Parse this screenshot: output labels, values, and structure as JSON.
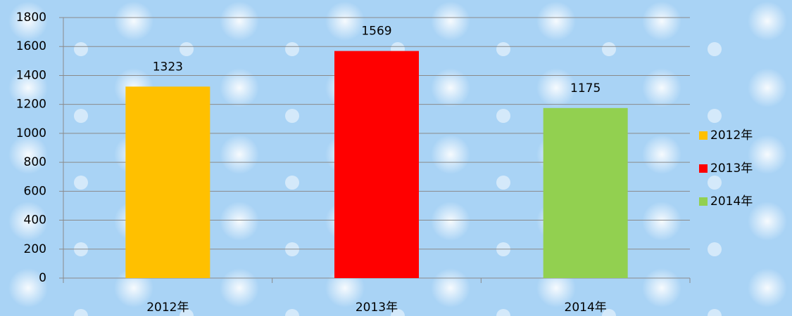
{
  "chart_data": {
    "type": "bar",
    "categories": [
      "2012年",
      "2013年",
      "2014年"
    ],
    "values": [
      1323,
      1569,
      1175
    ],
    "colors": [
      "#ffc000",
      "#ff0000",
      "#92d050"
    ],
    "ylim": [
      0,
      1800
    ],
    "yticks": [
      0,
      200,
      400,
      600,
      800,
      1000,
      1200,
      1400,
      1600,
      1800
    ],
    "grid": true,
    "legend": "right"
  }
}
